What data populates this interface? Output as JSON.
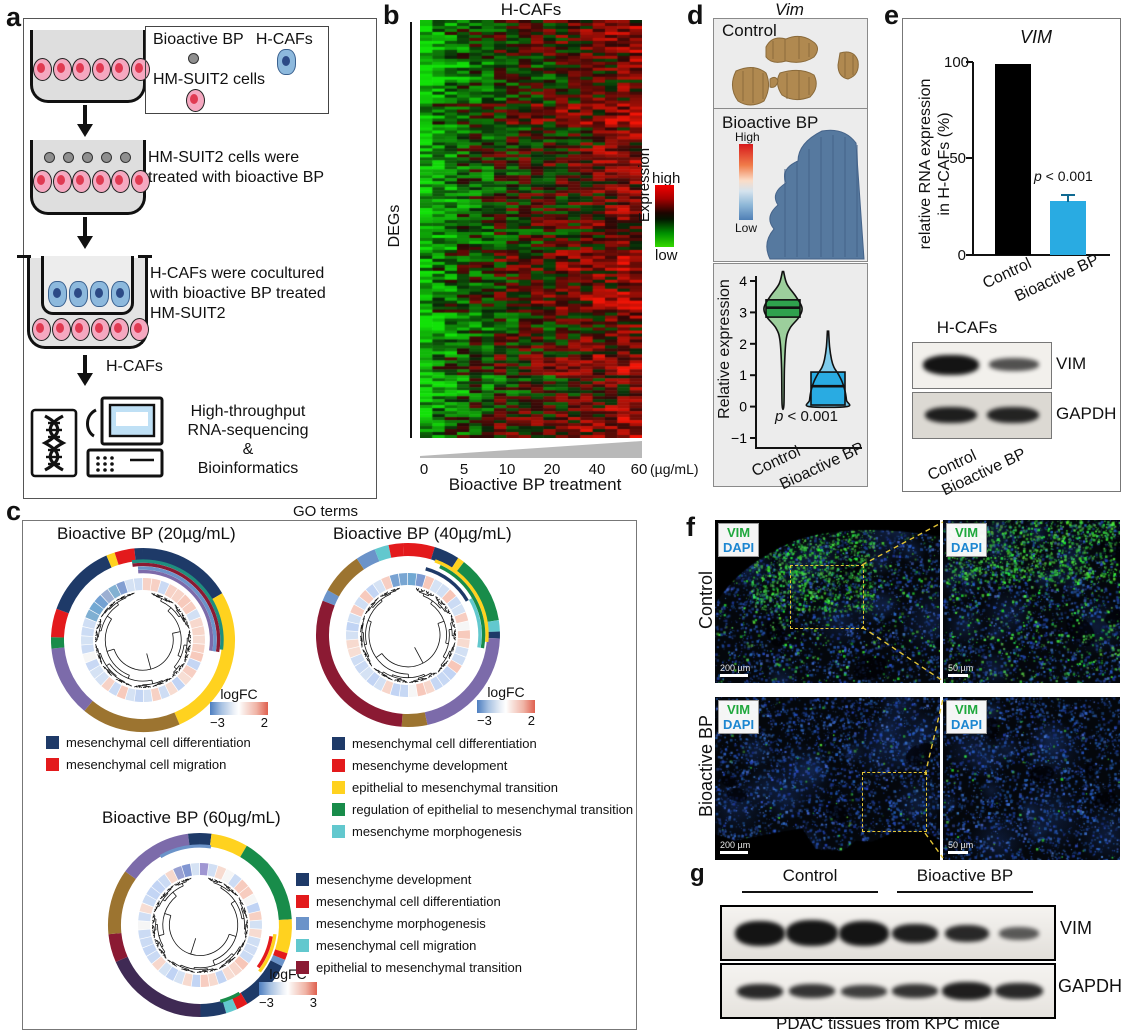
{
  "panels": {
    "a": {
      "label": "a",
      "legend": {
        "item1": "Bioactive BP",
        "item2": "H-CAFs",
        "item3": "HM-SUIT2 cells"
      },
      "step2": [
        "HM-SUIT2 cells were",
        "treated with bioactive BP"
      ],
      "step3": [
        "H-CAFs were cocultured",
        "with bioactive BP treated",
        "HM-SUIT2"
      ],
      "arrow_label": "H-CAFs",
      "output": [
        "High-throughput",
        "RNA-sequencing",
        "&",
        "Bioinformatics"
      ]
    },
    "b": {
      "label": "b",
      "title": "H-CAFs",
      "ylabel": "DEGs",
      "colorbar": {
        "label": "Expression",
        "high": "high",
        "low": "low"
      },
      "xticks": [
        "0",
        "5",
        "10",
        "20",
        "40",
        "60"
      ],
      "xunit": "(µg/mL)",
      "xlabel": "Bioactive BP treatment"
    },
    "c": {
      "label": "c",
      "title": "GO terms",
      "circles": [
        {
          "title": "Bioactive BP (20µg/mL)",
          "logfc": {
            "label": "logFC",
            "min": "−3",
            "max": "2"
          },
          "legend": [
            {
              "color": "#1E3A68",
              "label": "mesenchymal cell differentiation"
            },
            {
              "color": "#E31A1C",
              "label": "mesenchymal cell migration"
            }
          ],
          "outer_arcs": [
            [
              "#1E3A68",
              0.165
            ],
            [
              "#FFD21F",
              0.27
            ],
            [
              "#9C7430",
              0.175
            ],
            [
              "#7C6BAA",
              0.125
            ],
            [
              "#188C4A",
              0.02
            ],
            [
              "#E31A1C",
              0.05
            ],
            [
              "#1E3A68",
              0.13
            ],
            [
              "#FFD21F",
              0.015
            ],
            [
              "#E31A1C",
              0.035
            ],
            [
              "#1E3A68",
              0.015
            ]
          ],
          "thin_rings": [
            {
              "c": "#1F8E7E",
              "r": 79,
              "a0": -8,
              "a1": 97
            },
            {
              "c": "#8B1A33",
              "r": 75.5,
              "a0": -8,
              "a1": 99
            },
            {
              "c": "#6B93C9",
              "r": 72,
              "a0": -4,
              "a1": 99
            },
            {
              "c": "#7C6BAA",
              "r": 68.5,
              "a0": -4,
              "a1": 99
            }
          ],
          "rot": 0,
          "blue_arc": [
            -65,
            -15
          ],
          "tile_seed": 11,
          "tree_seed": 101
        },
        {
          "title": "Bioactive BP (40µg/mL)",
          "logfc": {
            "label": "logFC",
            "min": "−3",
            "max": "2"
          },
          "legend": [
            {
              "color": "#1E3A68",
              "label": "mesenchymal cell differentiation"
            },
            {
              "color": "#E31A1C",
              "label": "mesenchyme development"
            },
            {
              "color": "#FFD21F",
              "label": "epithelial to mesenchymal transition"
            },
            {
              "color": "#188C4A",
              "label": "regulation of epithelial to mesenchymal transition"
            },
            {
              "color": "#62C8CE",
              "label": "mesenchyme morphogenesis"
            }
          ],
          "outer_arcs": [
            [
              "#E31A1C",
              0.055
            ],
            [
              "#1E3A68",
              0.045
            ],
            [
              "#FFD21F",
              0.012
            ],
            [
              "#188C4A",
              0.12
            ],
            [
              "#62C8CE",
              0.02
            ],
            [
              "#1E3A68",
              0.012
            ],
            [
              "#7C6BAA",
              0.21
            ],
            [
              "#9C7430",
              0.045
            ],
            [
              "#8B1A33",
              0.3
            ],
            [
              "#6B93C9",
              0.02
            ],
            [
              "#9C7430",
              0.075
            ],
            [
              "#6B93C9",
              0.035
            ],
            [
              "#62C8CE",
              0.025
            ],
            [
              "#E31A1C",
              0.026
            ]
          ],
          "thin_rings": [
            {
              "c": "#FFD21F",
              "r": 79,
              "a0": 20,
              "a1": 95
            },
            {
              "c": "#188C4A",
              "r": 75.5,
              "a0": 25,
              "a1": 100
            },
            {
              "c": "#62C8CE",
              "r": 72,
              "a0": 60,
              "a1": 100
            },
            {
              "c": "#1E3A68",
              "r": 68.5,
              "a0": 15,
              "a1": 60
            }
          ],
          "rot": -0.05,
          "blue_arc": [
            -15,
            15
          ],
          "tile_seed": 23,
          "tree_seed": 202
        },
        {
          "title": "Bioactive BP (60µg/mL)",
          "logfc": {
            "label": "logFC",
            "min": "−3",
            "max": "3"
          },
          "legend": [
            {
              "color": "#1E3A68",
              "label": "mesenchyme development"
            },
            {
              "color": "#E31A1C",
              "label": "mesenchymal cell differentiation"
            },
            {
              "color": "#6B93C9",
              "label": "mesenchyme morphogenesis"
            },
            {
              "color": "#62C8CE",
              "label": "mesenchymal cell migration"
            },
            {
              "color": "#8B1A33",
              "label": "epithelial to mesenchymal transition"
            }
          ],
          "outer_arcs": [
            [
              "#1E3A68",
              0.02
            ],
            [
              "#FFD21F",
              0.065
            ],
            [
              "#188C4A",
              0.155
            ],
            [
              "#FFD21F",
              0.06
            ],
            [
              "#E31A1C",
              0.012
            ],
            [
              "#6B93C9",
              0.012
            ],
            [
              "#1E3A68",
              0.09
            ],
            [
              "#E31A1C",
              0.02
            ],
            [
              "#62C8CE",
              0.02
            ],
            [
              "#1E3A68",
              0.045
            ],
            [
              "#3F2A54",
              0.185
            ],
            [
              "#8B1A33",
              0.05
            ],
            [
              "#9C7430",
              0.115
            ],
            [
              "#7C6BAA",
              0.13
            ],
            [
              "#1E3A68",
              0.021
            ]
          ],
          "thin_rings": [
            {
              "c": "#6B93C9",
              "r": 79,
              "a0": -30,
              "a1": 8
            },
            {
              "c": "#FFD21F",
              "r": 75.5,
              "a0": 97,
              "a1": 128
            },
            {
              "c": "#E31A1C",
              "r": 72,
              "a0": 99,
              "a1": 126
            },
            {
              "c": "#188C4A",
              "r": 79,
              "a0": 150,
              "a1": 165
            }
          ],
          "rot": 0,
          "blue_arc": [
            -30,
            10
          ],
          "tile_seed": 37,
          "tree_seed": 303
        }
      ]
    },
    "d": {
      "label": "d",
      "title": "Vim",
      "maps": [
        {
          "label": "Control"
        },
        {
          "label": "Bioactive BP"
        }
      ],
      "scale": {
        "high": "High",
        "low": "Low"
      },
      "violin": {
        "ylabel": "Relative expression",
        "yticks": [
          "4",
          "3",
          "2",
          "1",
          "0",
          "−1"
        ],
        "p": "p < 0.001",
        "categories": [
          "Control",
          "Bioactive BP"
        ]
      }
    },
    "e": {
      "label": "e",
      "title": "VIM",
      "ylabel": [
        "relative RNA expression",
        "in H-CAFs (%)"
      ],
      "yticks": [
        "100",
        "50",
        "0"
      ],
      "p": "p < 0.001",
      "categories": [
        "Control",
        "Bioactive BP"
      ],
      "blot": {
        "header": "H-CAFs",
        "rows": [
          "VIM",
          "GAPDH"
        ],
        "lanes": [
          "Control",
          "Bioactive BP"
        ]
      }
    },
    "f": {
      "label": "f",
      "markers": {
        "vim": "VIM",
        "dapi": "DAPI"
      },
      "marker_colors": {
        "vim": "#1FA83D",
        "dapi": "#1C86D1"
      },
      "rows": [
        {
          "label": "Control",
          "scalebar_left": "200 µm",
          "scalebar_right": "50 µm"
        },
        {
          "label": "Bioactive BP",
          "scalebar_left": "200 µm",
          "scalebar_right": "50 µm"
        }
      ]
    },
    "g": {
      "label": "g",
      "groups": [
        "Control",
        "Bioactive BP"
      ],
      "bands": [
        "VIM",
        "GAPDH"
      ],
      "caption": "PDAC tissues from KPC mice"
    }
  },
  "chart_data": [
    {
      "type": "heatmap",
      "panel": "b",
      "title": "H-CAFs",
      "rows_label": "DEGs (unlabeled differentially expressed genes, ~140 rows)",
      "x_groups": [
        "0",
        "5",
        "10",
        "20",
        "40",
        "60"
      ],
      "x_unit": "µg/mL",
      "xlabel": "Bioactive BP treatment",
      "colorscale": {
        "low": "green",
        "mid": "black",
        "high": "red",
        "label": "Expression"
      },
      "column_bias_green_to_red": [
        -0.85,
        -0.6,
        -0.5,
        -0.38,
        -0.22,
        -0.18,
        -0.05,
        0.0,
        0.05,
        0.08,
        0.1,
        0.15,
        0.2,
        0.26,
        0.3,
        0.36,
        0.42,
        0.48
      ]
    },
    {
      "type": "violin",
      "panel": "d",
      "ylabel": "Relative expression",
      "ylim": [
        -1,
        4.5
      ],
      "categories": [
        "Control",
        "Bioactive BP"
      ],
      "p_value": "p < 0.001",
      "series": [
        {
          "name": "Control",
          "median": 3.15,
          "q1": 2.85,
          "q3": 3.4,
          "min": 0.05,
          "max": 4.3,
          "color": "#2FA14D",
          "fill": "#9CCf9C"
        },
        {
          "name": "Bioactive BP",
          "median": 0.65,
          "q1": 0.05,
          "q3": 1.1,
          "min": 0.0,
          "max": 2.4,
          "color": "#29ABE2",
          "fill": "#7fccec"
        }
      ]
    },
    {
      "type": "bar",
      "panel": "e",
      "title": "VIM",
      "ylabel": "relative RNA expression in H-CAFs (%)",
      "ylim": [
        0,
        100
      ],
      "categories": [
        "Control",
        "Bioactive BP"
      ],
      "values": [
        99,
        28
      ],
      "errors": [
        0,
        2
      ],
      "colors": [
        "#000000",
        "#29ABE2"
      ],
      "p_value": "p < 0.001"
    }
  ]
}
